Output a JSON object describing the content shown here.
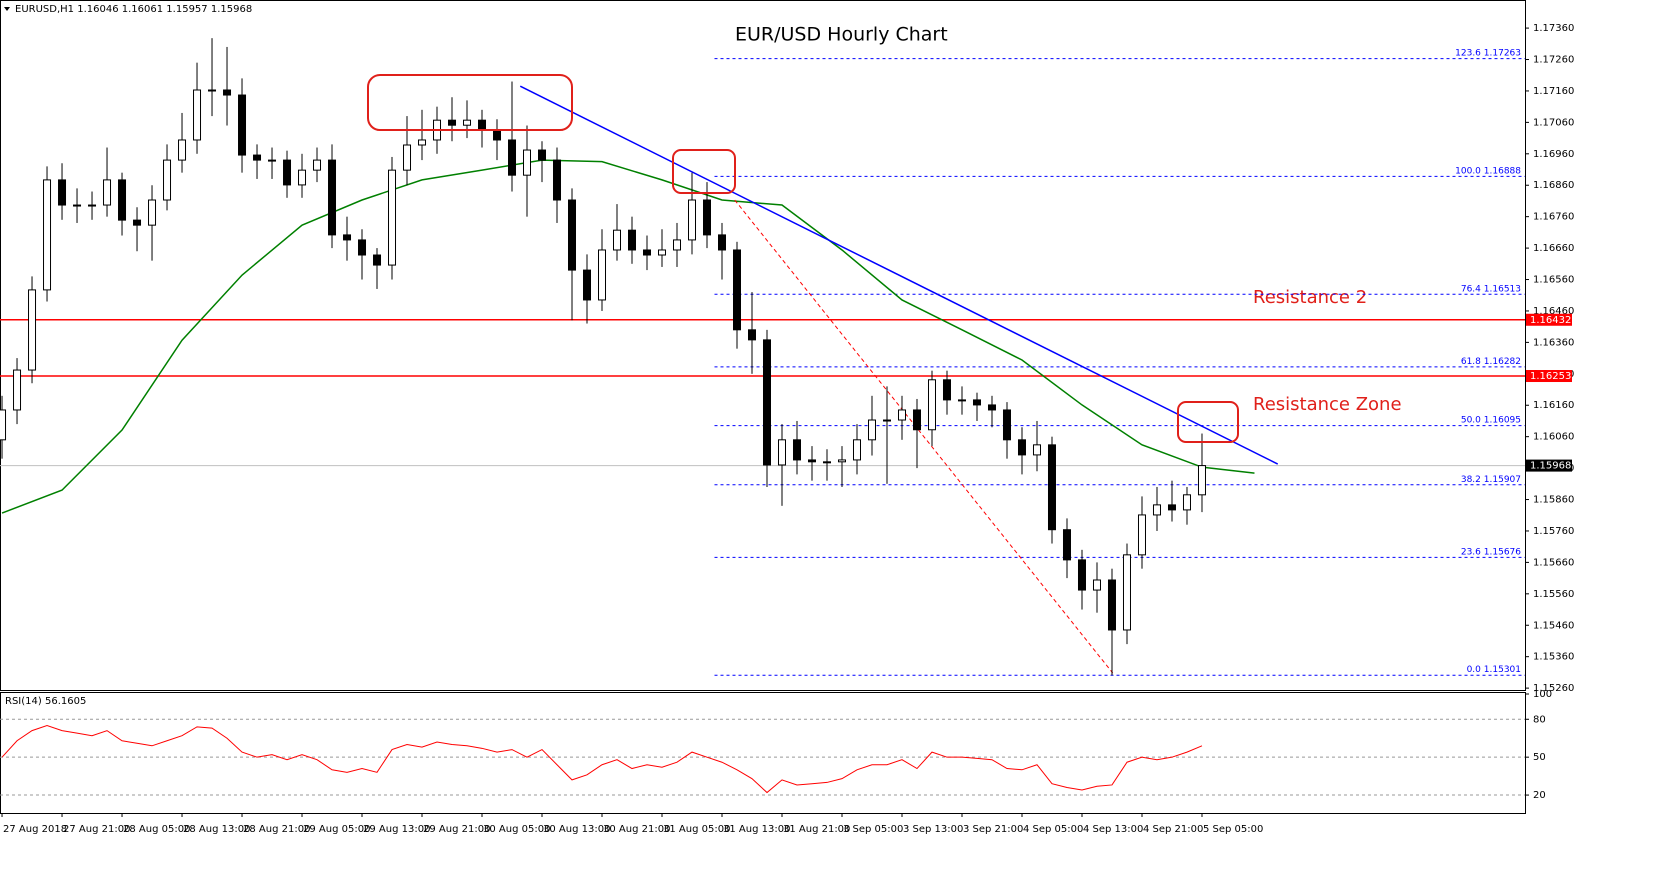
{
  "chart_data": {
    "type": "candlestick",
    "title": "EUR/USD Hourly Chart",
    "header": {
      "symbol": "EURUSD,H1",
      "open": 1.16046,
      "high": 1.16061,
      "low": 1.15957,
      "close": 1.15968
    },
    "x": [
      0,
      2,
      4,
      6,
      8,
      10,
      12,
      14,
      16,
      18,
      20,
      22,
      24,
      26,
      28,
      30,
      32,
      34,
      36,
      38,
      40,
      42,
      44,
      46,
      48,
      50,
      52,
      54,
      56,
      58,
      60,
      62,
      64,
      66,
      68,
      70,
      72,
      74,
      76,
      78,
      80,
      82,
      84,
      86,
      88,
      90,
      92,
      94,
      96,
      98,
      100,
      102,
      104,
      106,
      108,
      110,
      112,
      114,
      116,
      118,
      120,
      122,
      124,
      126,
      128,
      130,
      132,
      134,
      136,
      138,
      140,
      142,
      144,
      146,
      148,
      150,
      152,
      154,
      156,
      158,
      160
    ],
    "open": [
      1.1605,
      1.16145,
      1.16272,
      1.16527,
      1.16877,
      1.16797,
      1.16797,
      1.16797,
      1.16877,
      1.16749,
      1.16733,
      1.16813,
      1.1694,
      1.17004,
      1.17163,
      1.17163,
      1.17147,
      1.16956,
      1.1694,
      1.1694,
      1.16861,
      1.16908,
      1.1694,
      1.16702,
      1.16686,
      1.16638,
      1.16606,
      1.16908,
      1.16988,
      1.17004,
      1.17067,
      1.17051,
      1.17067,
      1.17035,
      1.17004,
      1.16892,
      1.16972,
      1.1694,
      1.16813,
      1.1659,
      1.16495,
      1.16654,
      1.16717,
      1.16654,
      1.16638,
      1.16654,
      1.16686,
      1.16813,
      1.16702,
      1.16654,
      1.164,
      1.16368,
      1.1597,
      1.1605,
      1.15986,
      1.1598,
      1.1598,
      1.15986,
      1.1605,
      1.16113,
      1.16113,
      1.16145,
      1.16082,
      1.16241,
      1.16177,
      1.16177,
      1.16161,
      1.16145,
      1.1605,
      1.16002,
      1.16034,
      1.15764,
      1.15668,
      1.15572,
      1.15604,
      1.15445,
      1.15684,
      1.15811,
      1.15843,
      1.15827,
      1.15875
    ],
    "high": [
      1.1619,
      1.1631,
      1.1657,
      1.1692,
      1.1693,
      1.1685,
      1.1684,
      1.1698,
      1.169,
      1.1679,
      1.1686,
      1.1699,
      1.1709,
      1.1725,
      1.17328,
      1.173,
      1.172,
      1.1699,
      1.1698,
      1.1697,
      1.1696,
      1.1698,
      1.1699,
      1.1676,
      1.1672,
      1.1666,
      1.1695,
      1.1708,
      1.171,
      1.1711,
      1.1714,
      1.1713,
      1.171,
      1.1707,
      1.1719,
      1.1705,
      1.17,
      1.1698,
      1.1685,
      1.1664,
      1.1672,
      1.168,
      1.1676,
      1.167,
      1.1672,
      1.1674,
      1.169,
      1.1687,
      1.1674,
      1.1668,
      1.1652,
      1.164,
      1.161,
      1.1611,
      1.1603,
      1.1602,
      1.1603,
      1.161,
      1.1619,
      1.1622,
      1.1619,
      1.1618,
      1.1627,
      1.1627,
      1.1622,
      1.162,
      1.1619,
      1.1617,
      1.1609,
      1.1611,
      1.1606,
      1.158,
      1.157,
      1.1566,
      1.1564,
      1.1572,
      1.1587,
      1.159,
      1.1592,
      1.159,
      1.1607
    ],
    "low": [
      1.1599,
      1.161,
      1.1623,
      1.1649,
      1.1675,
      1.1674,
      1.1675,
      1.1676,
      1.167,
      1.1665,
      1.1662,
      1.1678,
      1.169,
      1.1696,
      1.1708,
      1.1705,
      1.169,
      1.1688,
      1.1688,
      1.1682,
      1.1682,
      1.1687,
      1.1666,
      1.1662,
      1.1656,
      1.1653,
      1.1656,
      1.1686,
      1.1694,
      1.1696,
      1.17,
      1.1701,
      1.1698,
      1.1694,
      1.1684,
      1.1676,
      1.1687,
      1.1674,
      1.1643,
      1.1642,
      1.1646,
      1.1662,
      1.1661,
      1.1659,
      1.166,
      1.166,
      1.1664,
      1.1666,
      1.1656,
      1.1634,
      1.1626,
      1.159,
      1.1584,
      1.1594,
      1.1592,
      1.1592,
      1.159,
      1.1594,
      1.16,
      1.1591,
      1.1605,
      1.1596,
      1.1603,
      1.1613,
      1.1613,
      1.1611,
      1.1609,
      1.1599,
      1.1594,
      1.1595,
      1.1572,
      1.1561,
      1.1551,
      1.155,
      1.15301,
      1.154,
      1.1564,
      1.1576,
      1.1579,
      1.1578,
      1.1582
    ],
    "close": [
      1.16145,
      1.16272,
      1.16527,
      1.16877,
      1.16797,
      1.16797,
      1.16797,
      1.16877,
      1.16749,
      1.16733,
      1.16813,
      1.1694,
      1.17004,
      1.17163,
      1.17163,
      1.17147,
      1.16956,
      1.1694,
      1.1694,
      1.16861,
      1.16908,
      1.1694,
      1.16702,
      1.16686,
      1.16638,
      1.16606,
      1.16908,
      1.16988,
      1.17004,
      1.17067,
      1.17051,
      1.17067,
      1.17035,
      1.17004,
      1.16892,
      1.16972,
      1.1694,
      1.16813,
      1.1659,
      1.16495,
      1.16654,
      1.16717,
      1.16654,
      1.16638,
      1.16654,
      1.16686,
      1.16813,
      1.16702,
      1.16654,
      1.164,
      1.16368,
      1.1597,
      1.1605,
      1.15986,
      1.1598,
      1.1598,
      1.15986,
      1.1605,
      1.16113,
      1.16113,
      1.16145,
      1.16082,
      1.16241,
      1.16177,
      1.16177,
      1.16161,
      1.16145,
      1.1605,
      1.16002,
      1.16034,
      1.15764,
      1.15668,
      1.15572,
      1.15604,
      1.15445,
      1.15684,
      1.15811,
      1.15843,
      1.15827,
      1.15875,
      1.15968
    ],
    "ma": {
      "color": "#008000",
      "x": [
        0,
        8,
        16,
        24,
        32,
        40,
        48,
        56,
        64,
        72,
        80,
        88,
        96,
        104,
        112,
        120,
        128,
        136,
        144,
        152,
        160,
        167
      ],
      "values": [
        1.15817,
        1.1589,
        1.16081,
        1.16367,
        1.16574,
        1.16733,
        1.16813,
        1.16877,
        1.16908,
        1.1694,
        1.16935,
        1.16877,
        1.16813,
        1.16797,
        1.16654,
        1.16495,
        1.164,
        1.16304,
        1.16161,
        1.16034,
        1.15963,
        1.15944
      ]
    },
    "xlim": [
      -0.27,
      203.07
    ],
    "ylim": [
      1.15254,
      1.17443
    ],
    "yticks": [
      {
        "value": 1.1526,
        "label": "1.15260"
      },
      {
        "value": 1.1536,
        "label": "1.15360"
      },
      {
        "value": 1.1546,
        "label": "1.15460"
      },
      {
        "value": 1.1556,
        "label": "1.15560"
      },
      {
        "value": 1.1566,
        "label": "1.15660"
      },
      {
        "value": 1.1576,
        "label": "1.15760"
      },
      {
        "value": 1.1586,
        "label": "1.15860"
      },
      {
        "value": 1.1596,
        "label": "1.15960"
      },
      {
        "value": 1.1606,
        "label": "1.16060"
      },
      {
        "value": 1.1616,
        "label": "1.16160"
      },
      {
        "value": 1.1626,
        "label": "1.16260"
      },
      {
        "value": 1.1636,
        "label": "1.16360"
      },
      {
        "value": 1.1646,
        "label": "1.16460"
      },
      {
        "value": 1.1656,
        "label": "1.16560"
      },
      {
        "value": 1.1666,
        "label": "1.16660"
      },
      {
        "value": 1.1676,
        "label": "1.16760"
      },
      {
        "value": 1.1686,
        "label": "1.16860"
      },
      {
        "value": 1.1696,
        "label": "1.16960"
      },
      {
        "value": 1.1706,
        "label": "1.17060"
      },
      {
        "value": 1.1716,
        "label": "1.17160"
      },
      {
        "value": 1.1726,
        "label": "1.17260"
      },
      {
        "value": 1.1736,
        "label": "1.17360"
      }
    ],
    "xticks": [
      {
        "value": 0,
        "label": "27 Aug 2018"
      },
      {
        "value": 8,
        "label": "27 Aug 21:00"
      },
      {
        "value": 16,
        "label": "28 Aug 05:00"
      },
      {
        "value": 24,
        "label": "28 Aug 13:00"
      },
      {
        "value": 32,
        "label": "28 Aug 21:00"
      },
      {
        "value": 40,
        "label": "29 Aug 05:00"
      },
      {
        "value": 48,
        "label": "29 Aug 13:00"
      },
      {
        "value": 56,
        "label": "29 Aug 21:00"
      },
      {
        "value": 64,
        "label": "30 Aug 05:00"
      },
      {
        "value": 72,
        "label": "30 Aug 13:00"
      },
      {
        "value": 80,
        "label": "30 Aug 21:00"
      },
      {
        "value": 88,
        "label": "31 Aug 05:00"
      },
      {
        "value": 96,
        "label": "31 Aug 13:00"
      },
      {
        "value": 104,
        "label": "31 Aug 21:00"
      },
      {
        "value": 112,
        "label": "3 Sep 05:00"
      },
      {
        "value": 120,
        "label": "3 Sep 13:00"
      },
      {
        "value": 128,
        "label": "3 Sep 21:00"
      },
      {
        "value": 136,
        "label": "4 Sep 05:00"
      },
      {
        "value": 144,
        "label": "4 Sep 13:00"
      },
      {
        "value": 152,
        "label": "4 Sep 21:00"
      },
      {
        "value": 160,
        "label": "5 Sep 05:00"
      }
    ],
    "levels": [
      {
        "price": 1.16432,
        "color": "#ff0000"
      },
      {
        "price": 1.16253,
        "color": "#ff0000"
      }
    ],
    "current_price": {
      "price": 1.15968,
      "color": "#c0c0c0",
      "tag_color": "#000000"
    },
    "fib_start": 95,
    "fib_color": "#0000ff",
    "fib": [
      {
        "ratio": 123.6,
        "price": 1.17263
      },
      {
        "ratio": {
          "value": 100,
          "label": "100.0"
        },
        "price": 1.16888
      },
      {
        "ratio": 76.4,
        "price": 1.16513
      },
      {
        "ratio": 61.8,
        "price": 1.16282
      },
      {
        "ratio": {
          "value": 50,
          "label": "50.0"
        },
        "price": 1.16095
      },
      {
        "ratio": 38.2,
        "price": 1.15907
      },
      {
        "ratio": 23.6,
        "price": 1.15676
      },
      {
        "ratio": {
          "value": 0,
          "label": "0.0"
        },
        "price": 1.15301
      }
    ],
    "trendlines": [
      {
        "x": [
          69.1,
          170.1
        ],
        "y": [
          1.17175,
          1.15973
        ],
        "color": "#0000ff",
        "dashed": false
      },
      {
        "x": [
          97.7,
          148.1
        ],
        "y": [
          1.16813,
          1.15308
        ],
        "color": "#ff0000",
        "dashed": true
      }
    ],
    "annotations": [
      "Resistance 2",
      "Resistance Zone"
    ],
    "rsi": {
      "title": "RSI(14)",
      "value": 56.1605,
      "color": "#ff0000",
      "ylim": [
        5.8,
        100
      ],
      "yticks": [
        100,
        80,
        50,
        20
      ],
      "levels": [
        80,
        50,
        20
      ],
      "values": [
        50,
        63,
        71,
        75,
        71,
        69,
        67,
        71,
        63,
        61,
        59,
        63,
        67,
        74,
        73,
        65,
        54,
        50,
        52,
        48,
        52,
        48,
        40,
        38,
        41,
        38,
        56,
        60,
        58,
        62,
        60,
        59,
        57,
        54,
        56,
        50,
        56,
        44,
        32,
        36,
        44,
        48,
        41,
        44,
        42,
        46,
        54,
        50,
        46,
        40,
        33,
        22,
        32,
        28,
        29,
        30,
        33,
        40,
        44,
        44,
        48,
        41,
        54,
        50,
        50,
        49,
        48,
        41,
        40,
        44,
        29,
        26,
        24,
        27,
        28,
        46,
        50,
        48,
        50,
        54,
        59
      ]
    }
  }
}
